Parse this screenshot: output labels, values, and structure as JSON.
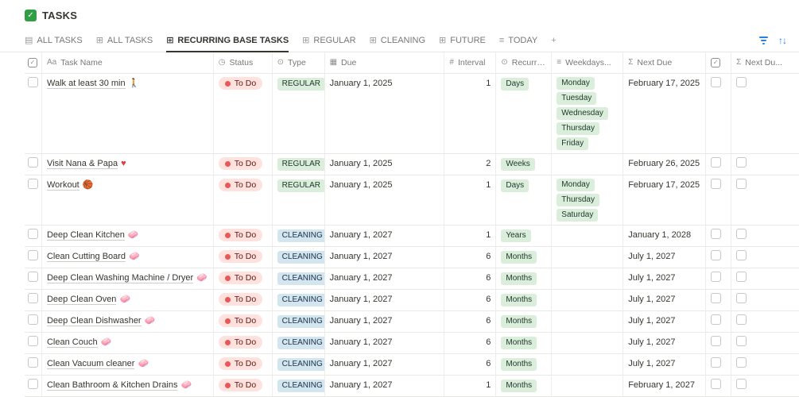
{
  "page": {
    "title": "TASKS"
  },
  "colors": {
    "accent_blue": "#2383E2",
    "title_check_green": "#2F9E44",
    "status_bg": "#FFE2DD",
    "status_dot": "#EB5757",
    "status_text": "#5D1715",
    "tag_green_bg": "#DBEDDB",
    "tag_green_text": "#1C3829",
    "tag_blue_bg": "#D3E5EF",
    "tag_blue_text": "#183347"
  },
  "tabs": [
    {
      "label": "ALL TASKS",
      "icon": "board",
      "active": false
    },
    {
      "label": "ALL TASKS",
      "icon": "table",
      "active": false
    },
    {
      "label": "RECURRING BASE TASKS",
      "icon": "table",
      "active": true
    },
    {
      "label": "REGULAR",
      "icon": "table",
      "active": false
    },
    {
      "label": "CLEANING",
      "icon": "table",
      "active": false
    },
    {
      "label": "FUTURE",
      "icon": "table",
      "active": false
    },
    {
      "label": "TODAY",
      "icon": "list",
      "active": false
    },
    {
      "label": "",
      "icon": "plus",
      "active": false
    }
  ],
  "toolbar": {
    "icons": [
      "filter",
      "sort"
    ]
  },
  "columns": [
    {
      "icon": "checkbox",
      "label": ""
    },
    {
      "icon": "Aa",
      "label": "Task Name"
    },
    {
      "icon": "status",
      "label": "Status"
    },
    {
      "icon": "type",
      "label": "Type"
    },
    {
      "icon": "calendar",
      "label": "Due"
    },
    {
      "icon": "hash",
      "label": "Interval"
    },
    {
      "icon": "type",
      "label": "Recurre..."
    },
    {
      "icon": "list",
      "label": "Weekdays..."
    },
    {
      "icon": "sigma",
      "label": "Next Due"
    },
    {
      "icon": "checkbox",
      "label": ""
    },
    {
      "icon": "sigma",
      "label": "Next Du..."
    }
  ],
  "rows": [
    {
      "name": "Walk at least 30 min",
      "emoji": "🚶",
      "status": "To Do",
      "type": "REGULAR",
      "type_color": "green",
      "due": "January 1, 2025",
      "interval": 1,
      "recurrence": "Days",
      "weekdays": [
        "Monday",
        "Tuesday",
        "Wednesday",
        "Thursday",
        "Friday"
      ],
      "next_due": "February 17, 2025",
      "selected": false,
      "checked": false,
      "next_due_checked": false
    },
    {
      "name": "Visit Nana & Papa",
      "emoji": "♥",
      "emoji_color": "#E03E3E",
      "status": "To Do",
      "type": "REGULAR",
      "type_color": "green",
      "due": "January 1, 2025",
      "interval": 2,
      "recurrence": "Weeks",
      "weekdays": [],
      "next_due": "February 26, 2025",
      "selected": false,
      "checked": false,
      "next_due_checked": false
    },
    {
      "name": "Workout",
      "emoji": "🏀",
      "status": "To Do",
      "type": "REGULAR",
      "type_color": "green",
      "due": "January 1, 2025",
      "interval": 1,
      "recurrence": "Days",
      "weekdays": [
        "Monday",
        "Thursday",
        "Saturday"
      ],
      "next_due": "February 17, 2025",
      "selected": false,
      "checked": false,
      "next_due_checked": false
    },
    {
      "name": "Deep Clean Kitchen",
      "emoji": "🧼",
      "status": "To Do",
      "type": "CLEANING",
      "type_color": "blue",
      "due": "January 1, 2027",
      "interval": 1,
      "recurrence": "Years",
      "weekdays": [],
      "next_due": "January 1, 2028",
      "selected": false,
      "checked": false,
      "next_due_checked": false
    },
    {
      "name": "Clean Cutting Board",
      "emoji": "🧼",
      "status": "To Do",
      "type": "CLEANING",
      "type_color": "blue",
      "due": "January 1, 2027",
      "interval": 6,
      "recurrence": "Months",
      "weekdays": [],
      "next_due": "July 1, 2027",
      "selected": false,
      "checked": false,
      "next_due_checked": false
    },
    {
      "name": "Deep Clean Washing Machine / Dryer",
      "emoji": "🧼",
      "status": "To Do",
      "type": "CLEANING",
      "type_color": "blue",
      "due": "January 1, 2027",
      "interval": 6,
      "recurrence": "Months",
      "weekdays": [],
      "next_due": "July 1, 2027",
      "selected": false,
      "checked": false,
      "next_due_checked": false
    },
    {
      "name": "Deep Clean Oven",
      "emoji": "🧼",
      "status": "To Do",
      "type": "CLEANING",
      "type_color": "blue",
      "due": "January 1, 2027",
      "interval": 6,
      "recurrence": "Months",
      "weekdays": [],
      "next_due": "July 1, 2027",
      "selected": false,
      "checked": false,
      "next_due_checked": false
    },
    {
      "name": "Deep Clean Dishwasher",
      "emoji": "🧼",
      "status": "To Do",
      "type": "CLEANING",
      "type_color": "blue",
      "due": "January 1, 2027",
      "interval": 6,
      "recurrence": "Months",
      "weekdays": [],
      "next_due": "July 1, 2027",
      "selected": false,
      "checked": false,
      "next_due_checked": false
    },
    {
      "name": "Clean Couch",
      "emoji": "🧼",
      "status": "To Do",
      "type": "CLEANING",
      "type_color": "blue",
      "due": "January 1, 2027",
      "interval": 6,
      "recurrence": "Months",
      "weekdays": [],
      "next_due": "July 1, 2027",
      "selected": false,
      "checked": false,
      "next_due_checked": false
    },
    {
      "name": "Clean Vacuum cleaner",
      "emoji": "🧼",
      "status": "To Do",
      "type": "CLEANING",
      "type_color": "blue",
      "due": "January 1, 2027",
      "interval": 6,
      "recurrence": "Months",
      "weekdays": [],
      "next_due": "July 1, 2027",
      "selected": false,
      "checked": false,
      "next_due_checked": false
    },
    {
      "name": "Clean Bathroom & Kitchen Drains",
      "emoji": "🧼",
      "status": "To Do",
      "type": "CLEANING",
      "type_color": "blue",
      "due": "January 1, 2027",
      "interval": 1,
      "recurrence": "Months",
      "weekdays": [],
      "next_due": "February 1, 2027",
      "selected": false,
      "checked": false,
      "next_due_checked": false
    }
  ]
}
